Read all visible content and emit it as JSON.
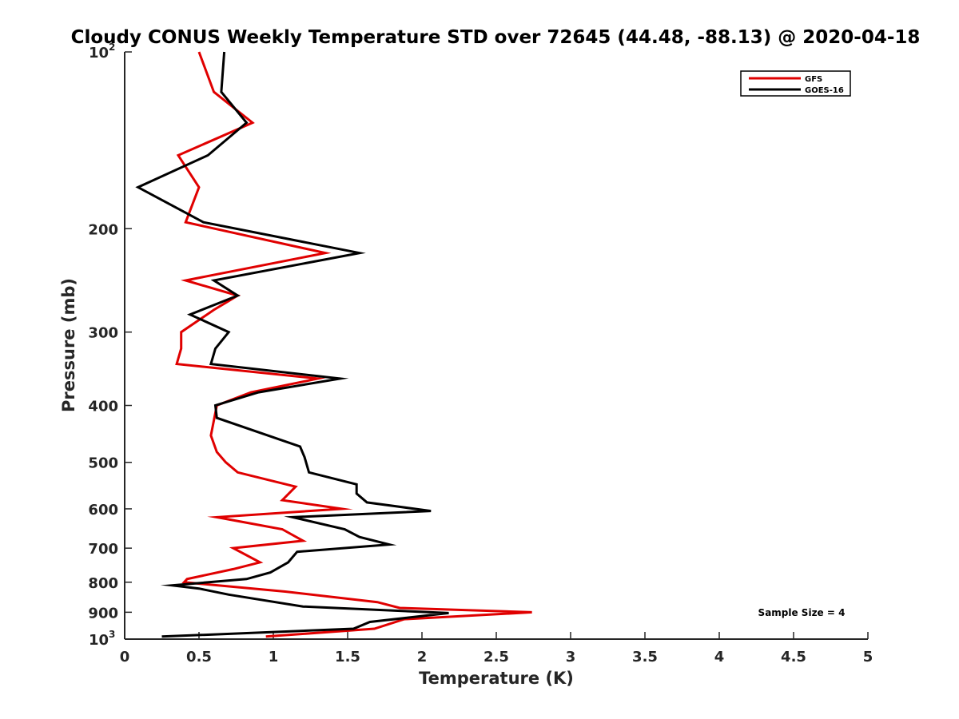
{
  "chart_data": {
    "type": "line",
    "title": "Cloudy CONUS Weekly Temperature STD over 72645 (44.48, -88.13) @ 2020-04-18",
    "xlabel": "Temperature (K)",
    "ylabel": "Pressure (mb)",
    "xlim": [
      0,
      5
    ],
    "ylim": [
      100,
      1000
    ],
    "y_scale": "log",
    "y_reversed": true,
    "x_ticks": [
      0,
      0.5,
      1,
      1.5,
      2,
      2.5,
      3,
      3.5,
      4,
      4.5,
      5
    ],
    "x_tick_labels": [
      "0",
      "0.5",
      "1",
      "1.5",
      "2",
      "2.5",
      "3",
      "3.5",
      "4",
      "4.5",
      "5"
    ],
    "y_ticks": [
      200,
      300,
      400,
      500,
      600,
      700,
      800,
      900
    ],
    "y_tick_labels": [
      "200",
      "300",
      "400",
      "500",
      "600",
      "700",
      "800",
      "900"
    ],
    "y_tick_endpoints": [
      {
        "value": 100,
        "base": "10",
        "exp": "2"
      },
      {
        "value": 1000,
        "base": "10",
        "exp": "3"
      }
    ],
    "grid": false,
    "legend_position": "top-right",
    "annotation": "Sample Size = 4",
    "series": [
      {
        "name": "GFS",
        "color": "#e00000",
        "points": [
          [
            0.5,
            100
          ],
          [
            0.6,
            117
          ],
          [
            0.86,
            132
          ],
          [
            0.36,
            150
          ],
          [
            0.5,
            170
          ],
          [
            0.41,
            195
          ],
          [
            1.35,
            220
          ],
          [
            0.41,
            245
          ],
          [
            0.76,
            260
          ],
          [
            0.6,
            275
          ],
          [
            0.38,
            300
          ],
          [
            0.38,
            320
          ],
          [
            0.35,
            340
          ],
          [
            1.3,
            360
          ],
          [
            0.85,
            380
          ],
          [
            0.62,
            400
          ],
          [
            0.58,
            450
          ],
          [
            0.62,
            480
          ],
          [
            0.68,
            500
          ],
          [
            0.76,
            520
          ],
          [
            1.15,
            550
          ],
          [
            1.06,
            580
          ],
          [
            1.46,
            600
          ],
          [
            0.62,
            620
          ],
          [
            1.06,
            650
          ],
          [
            1.2,
            680
          ],
          [
            0.73,
            700
          ],
          [
            0.91,
            740
          ],
          [
            0.73,
            760
          ],
          [
            0.42,
            790
          ],
          [
            0.4,
            800
          ],
          [
            1.08,
            830
          ],
          [
            1.7,
            865
          ],
          [
            1.85,
            885
          ],
          [
            2.74,
            900
          ],
          [
            1.88,
            925
          ],
          [
            1.68,
            960
          ],
          [
            0.95,
            990
          ]
        ]
      },
      {
        "name": "GOES-16",
        "color": "#000000",
        "points": [
          [
            0.67,
            100
          ],
          [
            0.65,
            117
          ],
          [
            0.82,
            132
          ],
          [
            0.56,
            150
          ],
          [
            0.09,
            170
          ],
          [
            0.53,
            195
          ],
          [
            1.58,
            220
          ],
          [
            0.6,
            245
          ],
          [
            0.76,
            260
          ],
          [
            0.44,
            280
          ],
          [
            0.7,
            300
          ],
          [
            0.61,
            320
          ],
          [
            0.58,
            340
          ],
          [
            1.45,
            360
          ],
          [
            0.9,
            380
          ],
          [
            0.61,
            400
          ],
          [
            0.62,
            420
          ],
          [
            1.18,
            470
          ],
          [
            1.21,
            490
          ],
          [
            1.24,
            520
          ],
          [
            1.56,
            545
          ],
          [
            1.56,
            565
          ],
          [
            1.63,
            585
          ],
          [
            2.06,
            605
          ],
          [
            1.13,
            620
          ],
          [
            1.48,
            650
          ],
          [
            1.58,
            670
          ],
          [
            1.78,
            690
          ],
          [
            1.16,
            710
          ],
          [
            1.1,
            740
          ],
          [
            0.98,
            770
          ],
          [
            0.82,
            790
          ],
          [
            0.32,
            810
          ],
          [
            0.5,
            820
          ],
          [
            0.7,
            840
          ],
          [
            1.2,
            880
          ],
          [
            2.18,
            903
          ],
          [
            1.65,
            935
          ],
          [
            1.54,
            960
          ],
          [
            0.25,
            990
          ]
        ]
      }
    ]
  }
}
